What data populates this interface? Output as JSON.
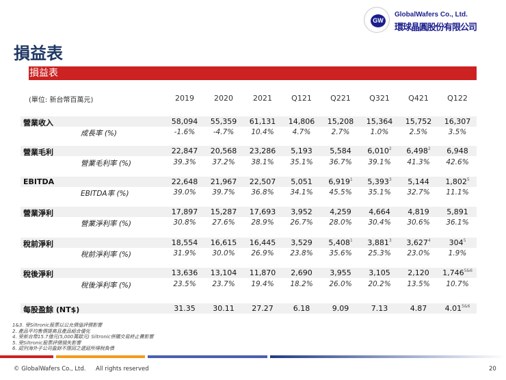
{
  "logo": {
    "mark": "GW",
    "name": "GlobalWafers Co., Ltd.",
    "name_cn": "環球晶圓股份有限公司"
  },
  "page_title": "損益表",
  "section_title": "損益表",
  "unit": "(單位: 新台幣百萬元)",
  "columns": [
    "2019",
    "2020",
    "2021",
    "Q121",
    "Q221",
    "Q321",
    "Q421",
    "Q122"
  ],
  "rows": [
    {
      "label": "營業收入",
      "values": [
        [
          "58,094"
        ],
        [
          "55,359"
        ],
        [
          "61,131"
        ],
        [
          "14,806"
        ],
        [
          "15,208"
        ],
        [
          "15,364"
        ],
        [
          "15,752"
        ],
        [
          "16,307"
        ]
      ],
      "rate_label": "成長率 (%)",
      "rates": [
        "-1.6%",
        "-4.7%",
        "10.4%",
        "4.7%",
        "2.7%",
        "1.0%",
        "2.5%",
        "3.5%"
      ]
    },
    {
      "label": "營業毛利",
      "values": [
        [
          "22,847"
        ],
        [
          "20,568"
        ],
        [
          "23,286"
        ],
        [
          "5,193"
        ],
        [
          "5,584"
        ],
        [
          "6,010",
          "2"
        ],
        [
          "6,498",
          "2"
        ],
        [
          "6,948"
        ]
      ],
      "rate_label": "營業毛利率 (%)",
      "rates": [
        "39.3%",
        "37.2%",
        "38.1%",
        "35.1%",
        "36.7%",
        "39.1%",
        "41.3%",
        "42.6%"
      ]
    },
    {
      "label": "EBITDA",
      "values": [
        [
          "22,648"
        ],
        [
          "21,967"
        ],
        [
          "22,507"
        ],
        [
          "5,051"
        ],
        [
          "6,919",
          "1"
        ],
        [
          "5,393",
          "3"
        ],
        [
          "5,144"
        ],
        [
          "1,802",
          "5"
        ]
      ],
      "rate_label": "EBITDA率 (%)",
      "rates": [
        "39.0%",
        "39.7%",
        "36.8%",
        "34.1%",
        "45.5%",
        "35.1%",
        "32.7%",
        "11.1%"
      ]
    },
    {
      "label": "營業淨利",
      "values": [
        [
          "17,897"
        ],
        [
          "15,287"
        ],
        [
          "17,693"
        ],
        [
          "3,952"
        ],
        [
          "4,259"
        ],
        [
          "4,664"
        ],
        [
          "4,819"
        ],
        [
          "5,891"
        ]
      ],
      "rate_label": "營業淨利率 (%)",
      "rates": [
        "30.8%",
        "27.6%",
        "28.9%",
        "26.7%",
        "28.0%",
        "30.4%",
        "30.6%",
        "36.1%"
      ]
    },
    {
      "label": "稅前淨利",
      "values": [
        [
          "18,554"
        ],
        [
          "16,615"
        ],
        [
          "16,445"
        ],
        [
          "3,529"
        ],
        [
          "5,408",
          "1"
        ],
        [
          "3,881",
          "3"
        ],
        [
          "3,627",
          "4"
        ],
        [
          "304",
          "5"
        ]
      ],
      "rate_label": "稅前淨利率 (%)",
      "rates": [
        "31.9%",
        "30.0%",
        "26.9%",
        "23.8%",
        "35.6%",
        "25.3%",
        "23.0%",
        "1.9%"
      ]
    },
    {
      "label": "稅後淨利",
      "values": [
        [
          "13,636"
        ],
        [
          "13,104"
        ],
        [
          "11,870"
        ],
        [
          "2,690"
        ],
        [
          "3,955"
        ],
        [
          "3,105"
        ],
        [
          "2,120"
        ],
        [
          "1,746",
          "5&6"
        ]
      ],
      "rate_label": "稅後淨利率 (%)",
      "rates": [
        "23.5%",
        "23.7%",
        "19.4%",
        "18.2%",
        "26.0%",
        "20.2%",
        "13.5%",
        "10.7%"
      ]
    },
    {
      "label": "每股盈餘 (NT$)",
      "values": [
        [
          "31.35"
        ],
        [
          "30.11"
        ],
        [
          "27.27"
        ],
        [
          "6.18"
        ],
        [
          "9.09"
        ],
        [
          "7.13"
        ],
        [
          "4.87"
        ],
        [
          "4.01",
          "5&6"
        ]
      ]
    }
  ],
  "notes": [
    "1&3. 受Siltronic股票以公允價值評價影響",
    "2. 產品平均售價提高且產品組合優化",
    "4. 受新台幣15.7億元(5,000萬歐元) Siltronic併購交易終止費影響",
    "5. 受Siltronic股票評價損失影響",
    "6. 認列海外子公司盈餘不匯回之遞延所得稅負債"
  ],
  "footer": {
    "copyright": "© GlobalWafers  Co., Ltd.",
    "rights": "All rights reserved",
    "page": "20"
  },
  "colors": {
    "accent_red": "#cc2222",
    "title_navy": "#1f3864",
    "line_orange": "#f39c1a",
    "line_blue": "#4a5fb0"
  }
}
